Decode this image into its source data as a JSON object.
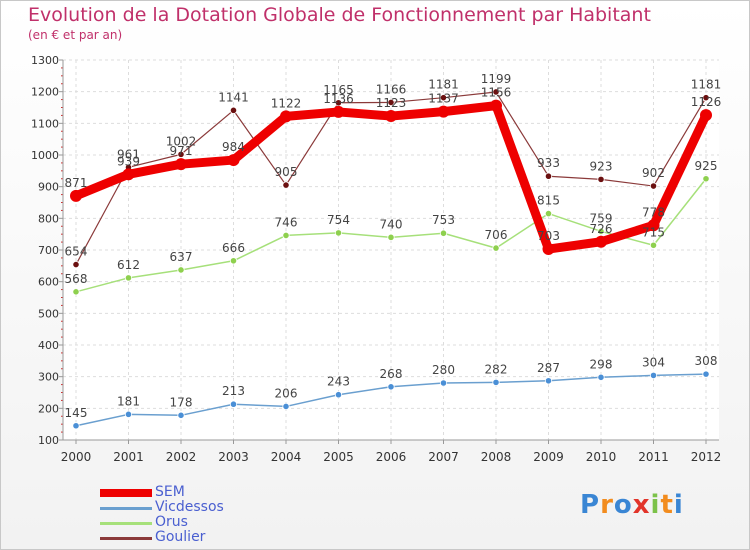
{
  "title": "Evolution de la Dotation Globale de Fonctionnement par Habitant",
  "subtitle": "(en € et par an)",
  "logo": {
    "letters": [
      "P",
      "r",
      "o",
      "x",
      "i",
      "t",
      "i"
    ],
    "colors": [
      "#3a86d4",
      "#f28c1e",
      "#3a86d4",
      "#e2342a",
      "#7cc24a",
      "#f28c1e",
      "#3a86d4"
    ]
  },
  "chart_data": {
    "type": "line",
    "title": "Evolution de la Dotation Globale de Fonctionnement par Habitant",
    "subtitle": "(en € et par an)",
    "xlabel": "",
    "ylabel": "",
    "ylim": [
      100,
      1300
    ],
    "yticks": [
      100,
      200,
      300,
      400,
      500,
      600,
      700,
      800,
      900,
      1000,
      1100,
      1200,
      1300
    ],
    "categories": [
      "2000",
      "2001",
      "2002",
      "2003",
      "2004",
      "2005",
      "2006",
      "2007",
      "2008",
      "2009",
      "2010",
      "2011",
      "2012"
    ],
    "grid": true,
    "legend_position": "bottom-left",
    "series": [
      {
        "name": "SEM",
        "color": "#ee0000",
        "width": 9,
        "marker_color": "#ee0000",
        "values": [
          871,
          939,
          971,
          984,
          1122,
          1136,
          1123,
          1137,
          1156,
          703,
          726,
          778,
          1126
        ]
      },
      {
        "name": "Vicdessos",
        "color": "#6a9fcf",
        "width": 1.5,
        "marker_color": "#4a8fd6",
        "values": [
          145,
          181,
          178,
          213,
          206,
          243,
          268,
          280,
          282,
          287,
          298,
          304,
          308
        ]
      },
      {
        "name": "Orus",
        "color": "#a6e07a",
        "width": 1.5,
        "marker_color": "#8ed04e",
        "values": [
          568,
          612,
          637,
          666,
          746,
          754,
          740,
          753,
          706,
          815,
          759,
          715,
          925
        ]
      },
      {
        "name": "Goulier",
        "color": "#8b3a3a",
        "width": 1.2,
        "marker_color": "#6b1010",
        "values": [
          654,
          961,
          1002,
          1141,
          905,
          1165,
          1166,
          1181,
          1199,
          933,
          923,
          902,
          1181
        ]
      }
    ]
  }
}
